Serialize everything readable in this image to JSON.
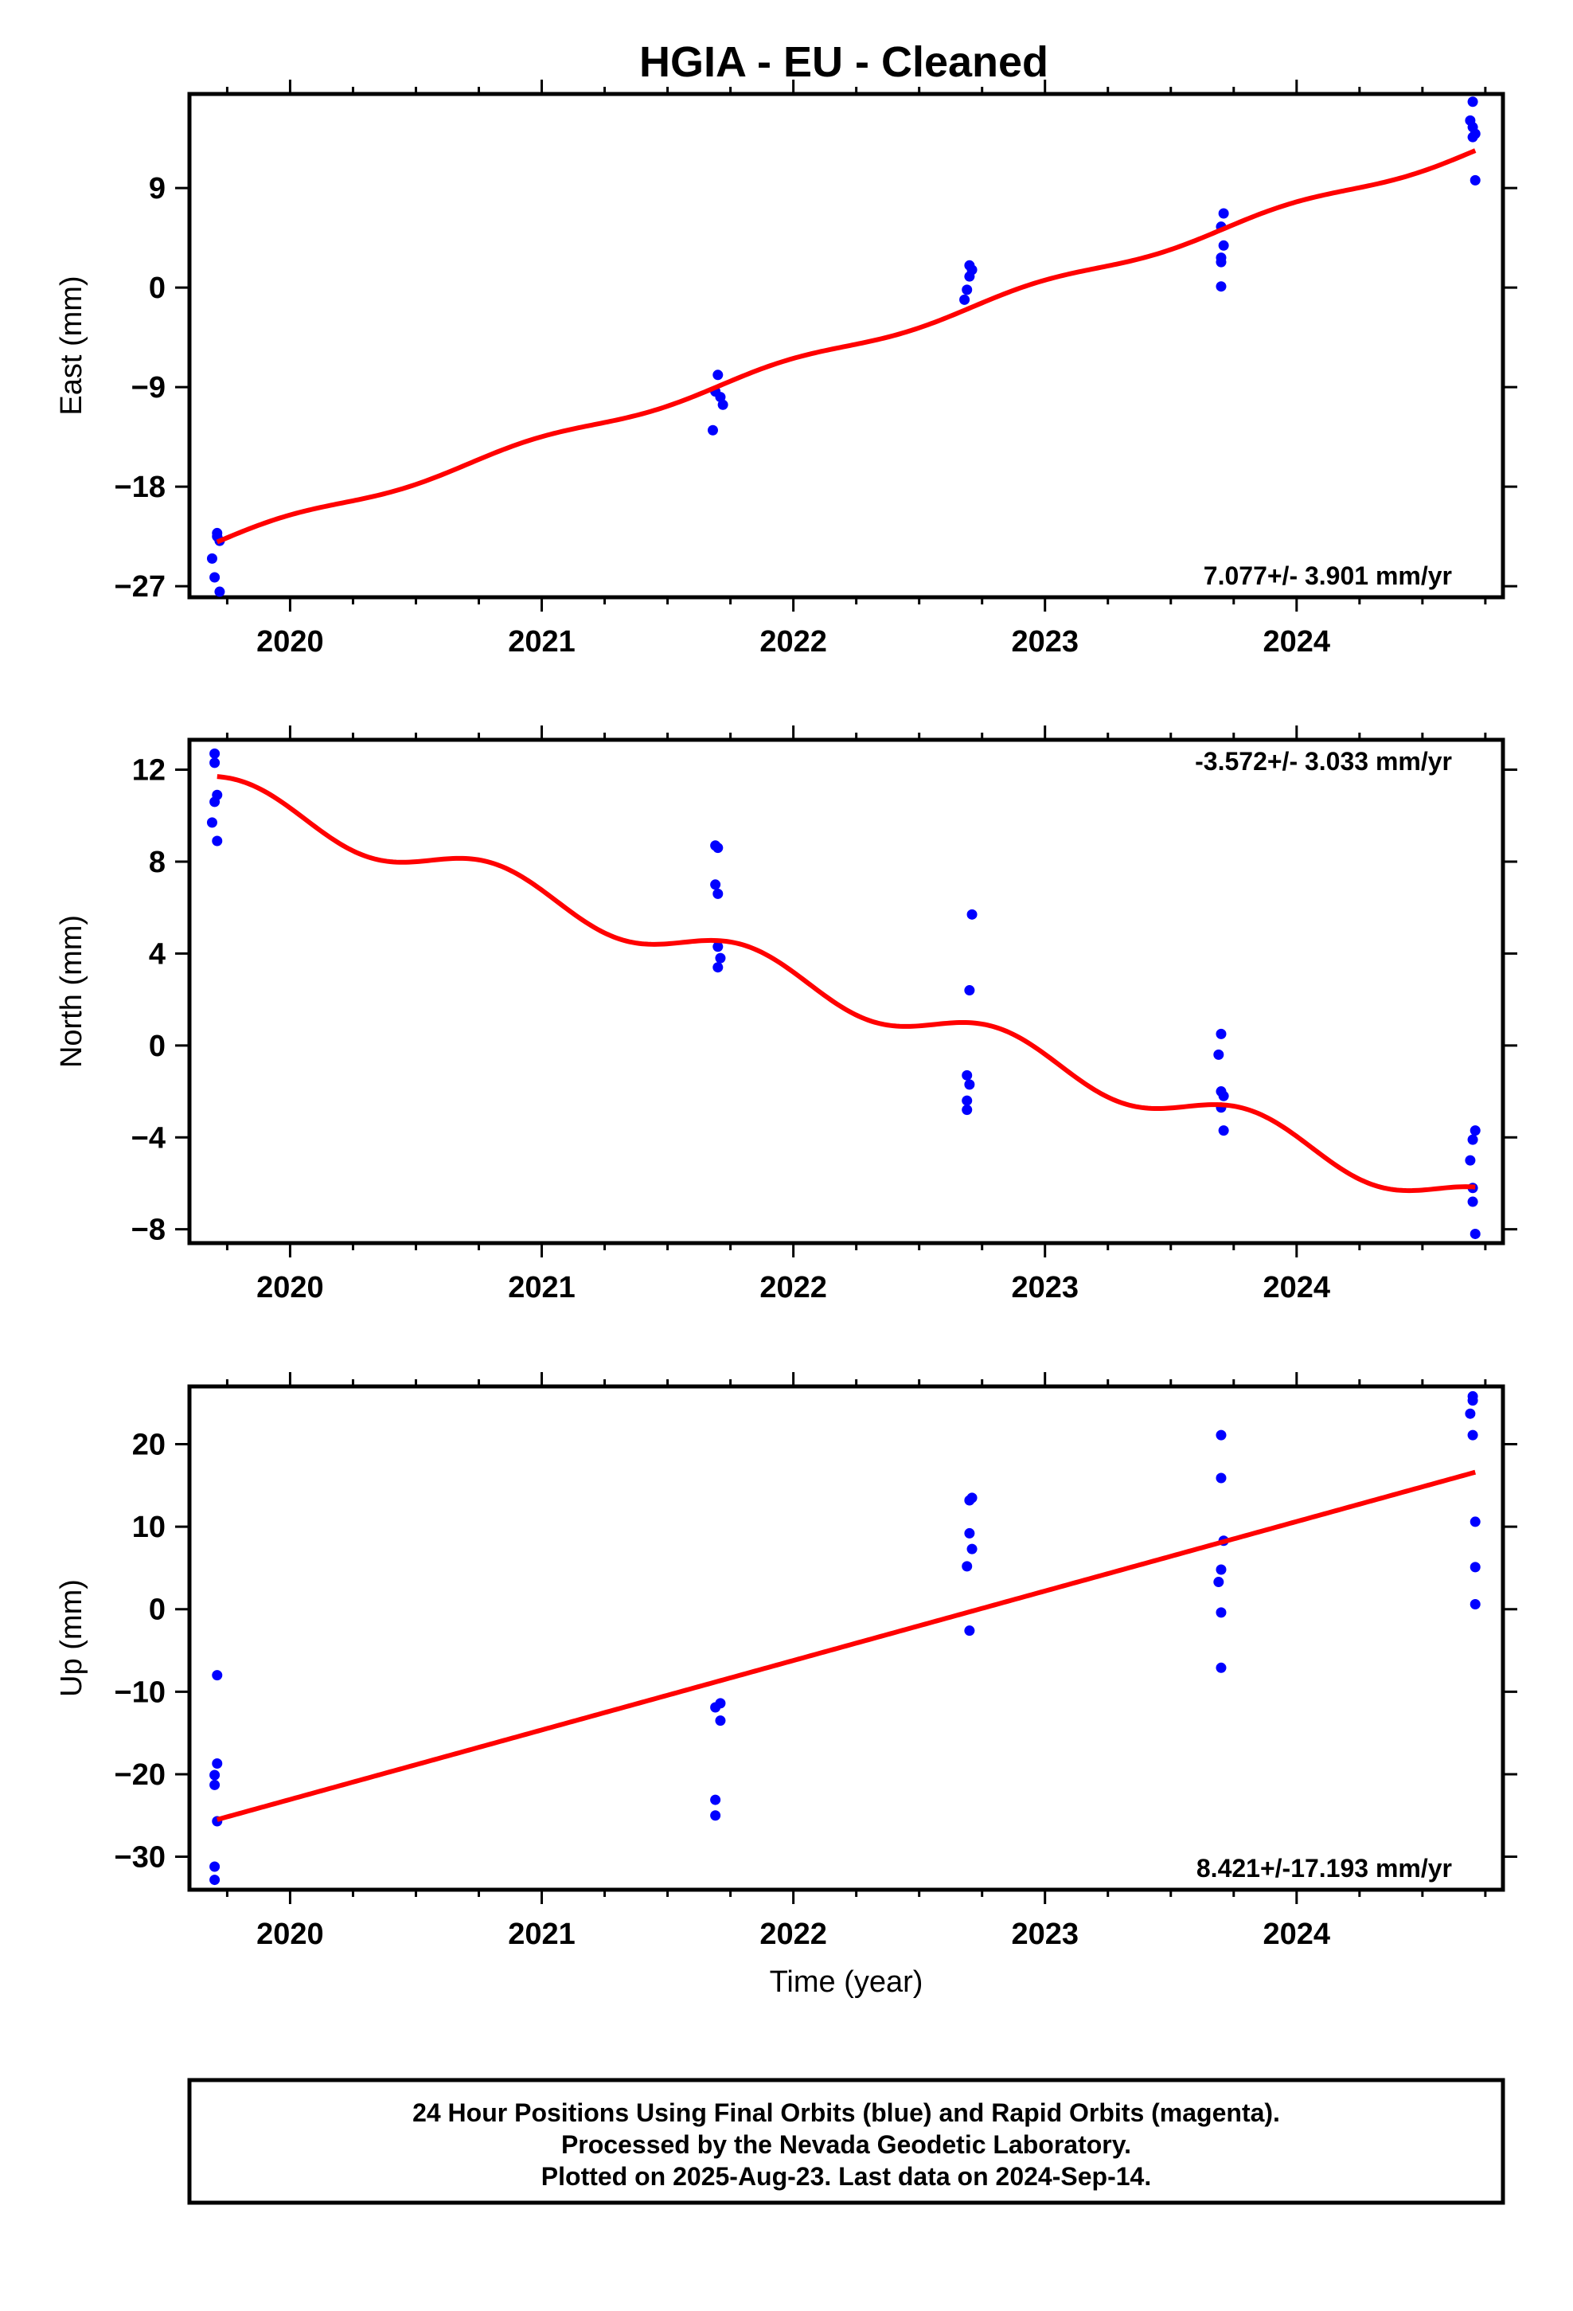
{
  "title": "HGIA  - EU - Cleaned",
  "colors": {
    "final_orbits": "#0000ff",
    "fit_line": "#ff0000",
    "axis": "#000000"
  },
  "chart_data": [
    {
      "type": "scatter",
      "id": "east",
      "ylabel": "East (mm)",
      "xlabel": "",
      "xlim": [
        2019.6,
        2024.82
      ],
      "ylim": [
        -28,
        17.5
      ],
      "xticks": [
        2020,
        2021,
        2022,
        2023,
        2024
      ],
      "yticks": [
        -27,
        -18,
        -9,
        0,
        9
      ],
      "ytick_labels": [
        "−27",
        "−18",
        "−9",
        "0",
        "9"
      ],
      "rate_text": "7.077+/- 3.901 mm/yr",
      "rate_position": "bottom-right",
      "points": [
        {
          "x": 2019.71,
          "y": -22.2
        },
        {
          "x": 2019.72,
          "y": -22.9
        },
        {
          "x": 2019.69,
          "y": -24.5
        },
        {
          "x": 2019.7,
          "y": -26.2
        },
        {
          "x": 2019.72,
          "y": -27.5
        },
        {
          "x": 2019.71,
          "y": -22.5
        },
        {
          "x": 2021.7,
          "y": -7.9
        },
        {
          "x": 2021.69,
          "y": -9.4
        },
        {
          "x": 2021.71,
          "y": -9.9
        },
        {
          "x": 2021.72,
          "y": -10.6
        },
        {
          "x": 2021.68,
          "y": -12.9
        },
        {
          "x": 2022.7,
          "y": 2.0
        },
        {
          "x": 2022.71,
          "y": 1.6
        },
        {
          "x": 2022.7,
          "y": 1.0
        },
        {
          "x": 2022.69,
          "y": -0.2
        },
        {
          "x": 2022.68,
          "y": -1.1
        },
        {
          "x": 2023.71,
          "y": 6.7
        },
        {
          "x": 2023.7,
          "y": 5.5
        },
        {
          "x": 2023.71,
          "y": 3.8
        },
        {
          "x": 2023.7,
          "y": 2.7
        },
        {
          "x": 2023.7,
          "y": 2.3
        },
        {
          "x": 2023.7,
          "y": 0.1
        },
        {
          "x": 2024.7,
          "y": 16.8
        },
        {
          "x": 2024.69,
          "y": 15.1
        },
        {
          "x": 2024.7,
          "y": 14.5
        },
        {
          "x": 2024.71,
          "y": 13.9
        },
        {
          "x": 2024.7,
          "y": 13.6
        },
        {
          "x": 2024.71,
          "y": 9.7
        }
      ],
      "fit": {
        "kind": "linear",
        "x0": 2019.71,
        "y0": -23.0,
        "rate": 7.077,
        "x_end": 2024.71,
        "ripple_amp": 0.4,
        "ripple_period": 1.0
      }
    },
    {
      "type": "scatter",
      "id": "north",
      "ylabel": "North (mm)",
      "xlabel": "",
      "xlim": [
        2019.6,
        2024.82
      ],
      "ylim": [
        -8.6,
        13.3
      ],
      "xticks": [
        2020,
        2021,
        2022,
        2023,
        2024
      ],
      "yticks": [
        -8,
        -4,
        0,
        4,
        8,
        12
      ],
      "ytick_labels": [
        "−8",
        "−4",
        "0",
        "4",
        "8",
        "12"
      ],
      "rate_text": "-3.572+/- 3.033 mm/yr",
      "rate_position": "top-right",
      "points": [
        {
          "x": 2019.7,
          "y": 12.7
        },
        {
          "x": 2019.7,
          "y": 12.3
        },
        {
          "x": 2019.71,
          "y": 10.9
        },
        {
          "x": 2019.7,
          "y": 10.6
        },
        {
          "x": 2019.69,
          "y": 9.7
        },
        {
          "x": 2019.71,
          "y": 8.9
        },
        {
          "x": 2021.69,
          "y": 8.7
        },
        {
          "x": 2021.7,
          "y": 8.6
        },
        {
          "x": 2021.69,
          "y": 7.0
        },
        {
          "x": 2021.7,
          "y": 6.6
        },
        {
          "x": 2021.7,
          "y": 4.3
        },
        {
          "x": 2021.71,
          "y": 3.8
        },
        {
          "x": 2021.7,
          "y": 3.4
        },
        {
          "x": 2022.71,
          "y": 5.7
        },
        {
          "x": 2022.7,
          "y": 2.4
        },
        {
          "x": 2022.69,
          "y": -1.3
        },
        {
          "x": 2022.7,
          "y": -1.7
        },
        {
          "x": 2022.69,
          "y": -2.4
        },
        {
          "x": 2022.69,
          "y": -2.8
        },
        {
          "x": 2023.7,
          "y": 0.5
        },
        {
          "x": 2023.69,
          "y": -0.4
        },
        {
          "x": 2023.7,
          "y": -2.0
        },
        {
          "x": 2023.71,
          "y": -2.2
        },
        {
          "x": 2023.7,
          "y": -2.7
        },
        {
          "x": 2023.71,
          "y": -3.7
        },
        {
          "x": 2024.71,
          "y": -3.7
        },
        {
          "x": 2024.7,
          "y": -4.1
        },
        {
          "x": 2024.69,
          "y": -5.0
        },
        {
          "x": 2024.7,
          "y": -6.2
        },
        {
          "x": 2024.7,
          "y": -6.8
        },
        {
          "x": 2024.71,
          "y": -8.2
        }
      ],
      "fit": {
        "kind": "seasonal",
        "x0": 2019.71,
        "y0": 11.7,
        "rate": -3.572,
        "x_end": 2024.71,
        "ripple_amp": 0.75,
        "ripple_period": 1.0,
        "ripple_phase": 0.15
      }
    },
    {
      "type": "scatter",
      "id": "up",
      "ylabel": "Up (mm)",
      "xlabel": "Time (year)",
      "xlim": [
        2019.6,
        2024.82
      ],
      "ylim": [
        -34,
        27
      ],
      "xticks": [
        2020,
        2021,
        2022,
        2023,
        2024
      ],
      "yticks": [
        -30,
        -20,
        -10,
        0,
        10,
        20
      ],
      "ytick_labels": [
        "−30",
        "−20",
        "−10",
        "0",
        "10",
        "20"
      ],
      "rate_text": "8.421+/-17.193 mm/yr",
      "rate_position": "bottom-right",
      "points": [
        {
          "x": 2019.71,
          "y": -8.0
        },
        {
          "x": 2019.71,
          "y": -18.7
        },
        {
          "x": 2019.7,
          "y": -20.1
        },
        {
          "x": 2019.7,
          "y": -21.3
        },
        {
          "x": 2019.71,
          "y": -25.7
        },
        {
          "x": 2019.7,
          "y": -31.2
        },
        {
          "x": 2019.7,
          "y": -32.8
        },
        {
          "x": 2021.71,
          "y": -11.4
        },
        {
          "x": 2021.69,
          "y": -11.9
        },
        {
          "x": 2021.71,
          "y": -13.5
        },
        {
          "x": 2021.69,
          "y": -23.1
        },
        {
          "x": 2021.69,
          "y": -25.0
        },
        {
          "x": 2022.71,
          "y": 13.5
        },
        {
          "x": 2022.7,
          "y": 13.2
        },
        {
          "x": 2022.7,
          "y": 9.2
        },
        {
          "x": 2022.71,
          "y": 7.3
        },
        {
          "x": 2022.69,
          "y": 5.2
        },
        {
          "x": 2022.7,
          "y": -2.6
        },
        {
          "x": 2023.7,
          "y": 21.1
        },
        {
          "x": 2023.7,
          "y": 15.9
        },
        {
          "x": 2023.71,
          "y": 8.3
        },
        {
          "x": 2023.7,
          "y": 4.8
        },
        {
          "x": 2023.69,
          "y": 3.3
        },
        {
          "x": 2023.7,
          "y": -0.4
        },
        {
          "x": 2023.7,
          "y": -7.1
        },
        {
          "x": 2024.7,
          "y": 25.8
        },
        {
          "x": 2024.7,
          "y": 25.3
        },
        {
          "x": 2024.69,
          "y": 23.7
        },
        {
          "x": 2024.7,
          "y": 21.1
        },
        {
          "x": 2024.71,
          "y": 10.6
        },
        {
          "x": 2024.71,
          "y": 5.1
        },
        {
          "x": 2024.71,
          "y": 0.6
        }
      ],
      "fit": {
        "kind": "linear",
        "x0": 2019.71,
        "y0": -25.5,
        "rate": 8.421,
        "x_end": 2024.71,
        "ripple_amp": 0,
        "ripple_period": 1.0
      }
    }
  ],
  "footer": {
    "line1": "24 Hour Positions Using Final Orbits (blue) and Rapid Orbits (magenta).",
    "line2": "Processed by the Nevada Geodetic Laboratory.",
    "line3": "Plotted on 2025-Aug-23. Last data on 2024-Sep-14."
  }
}
